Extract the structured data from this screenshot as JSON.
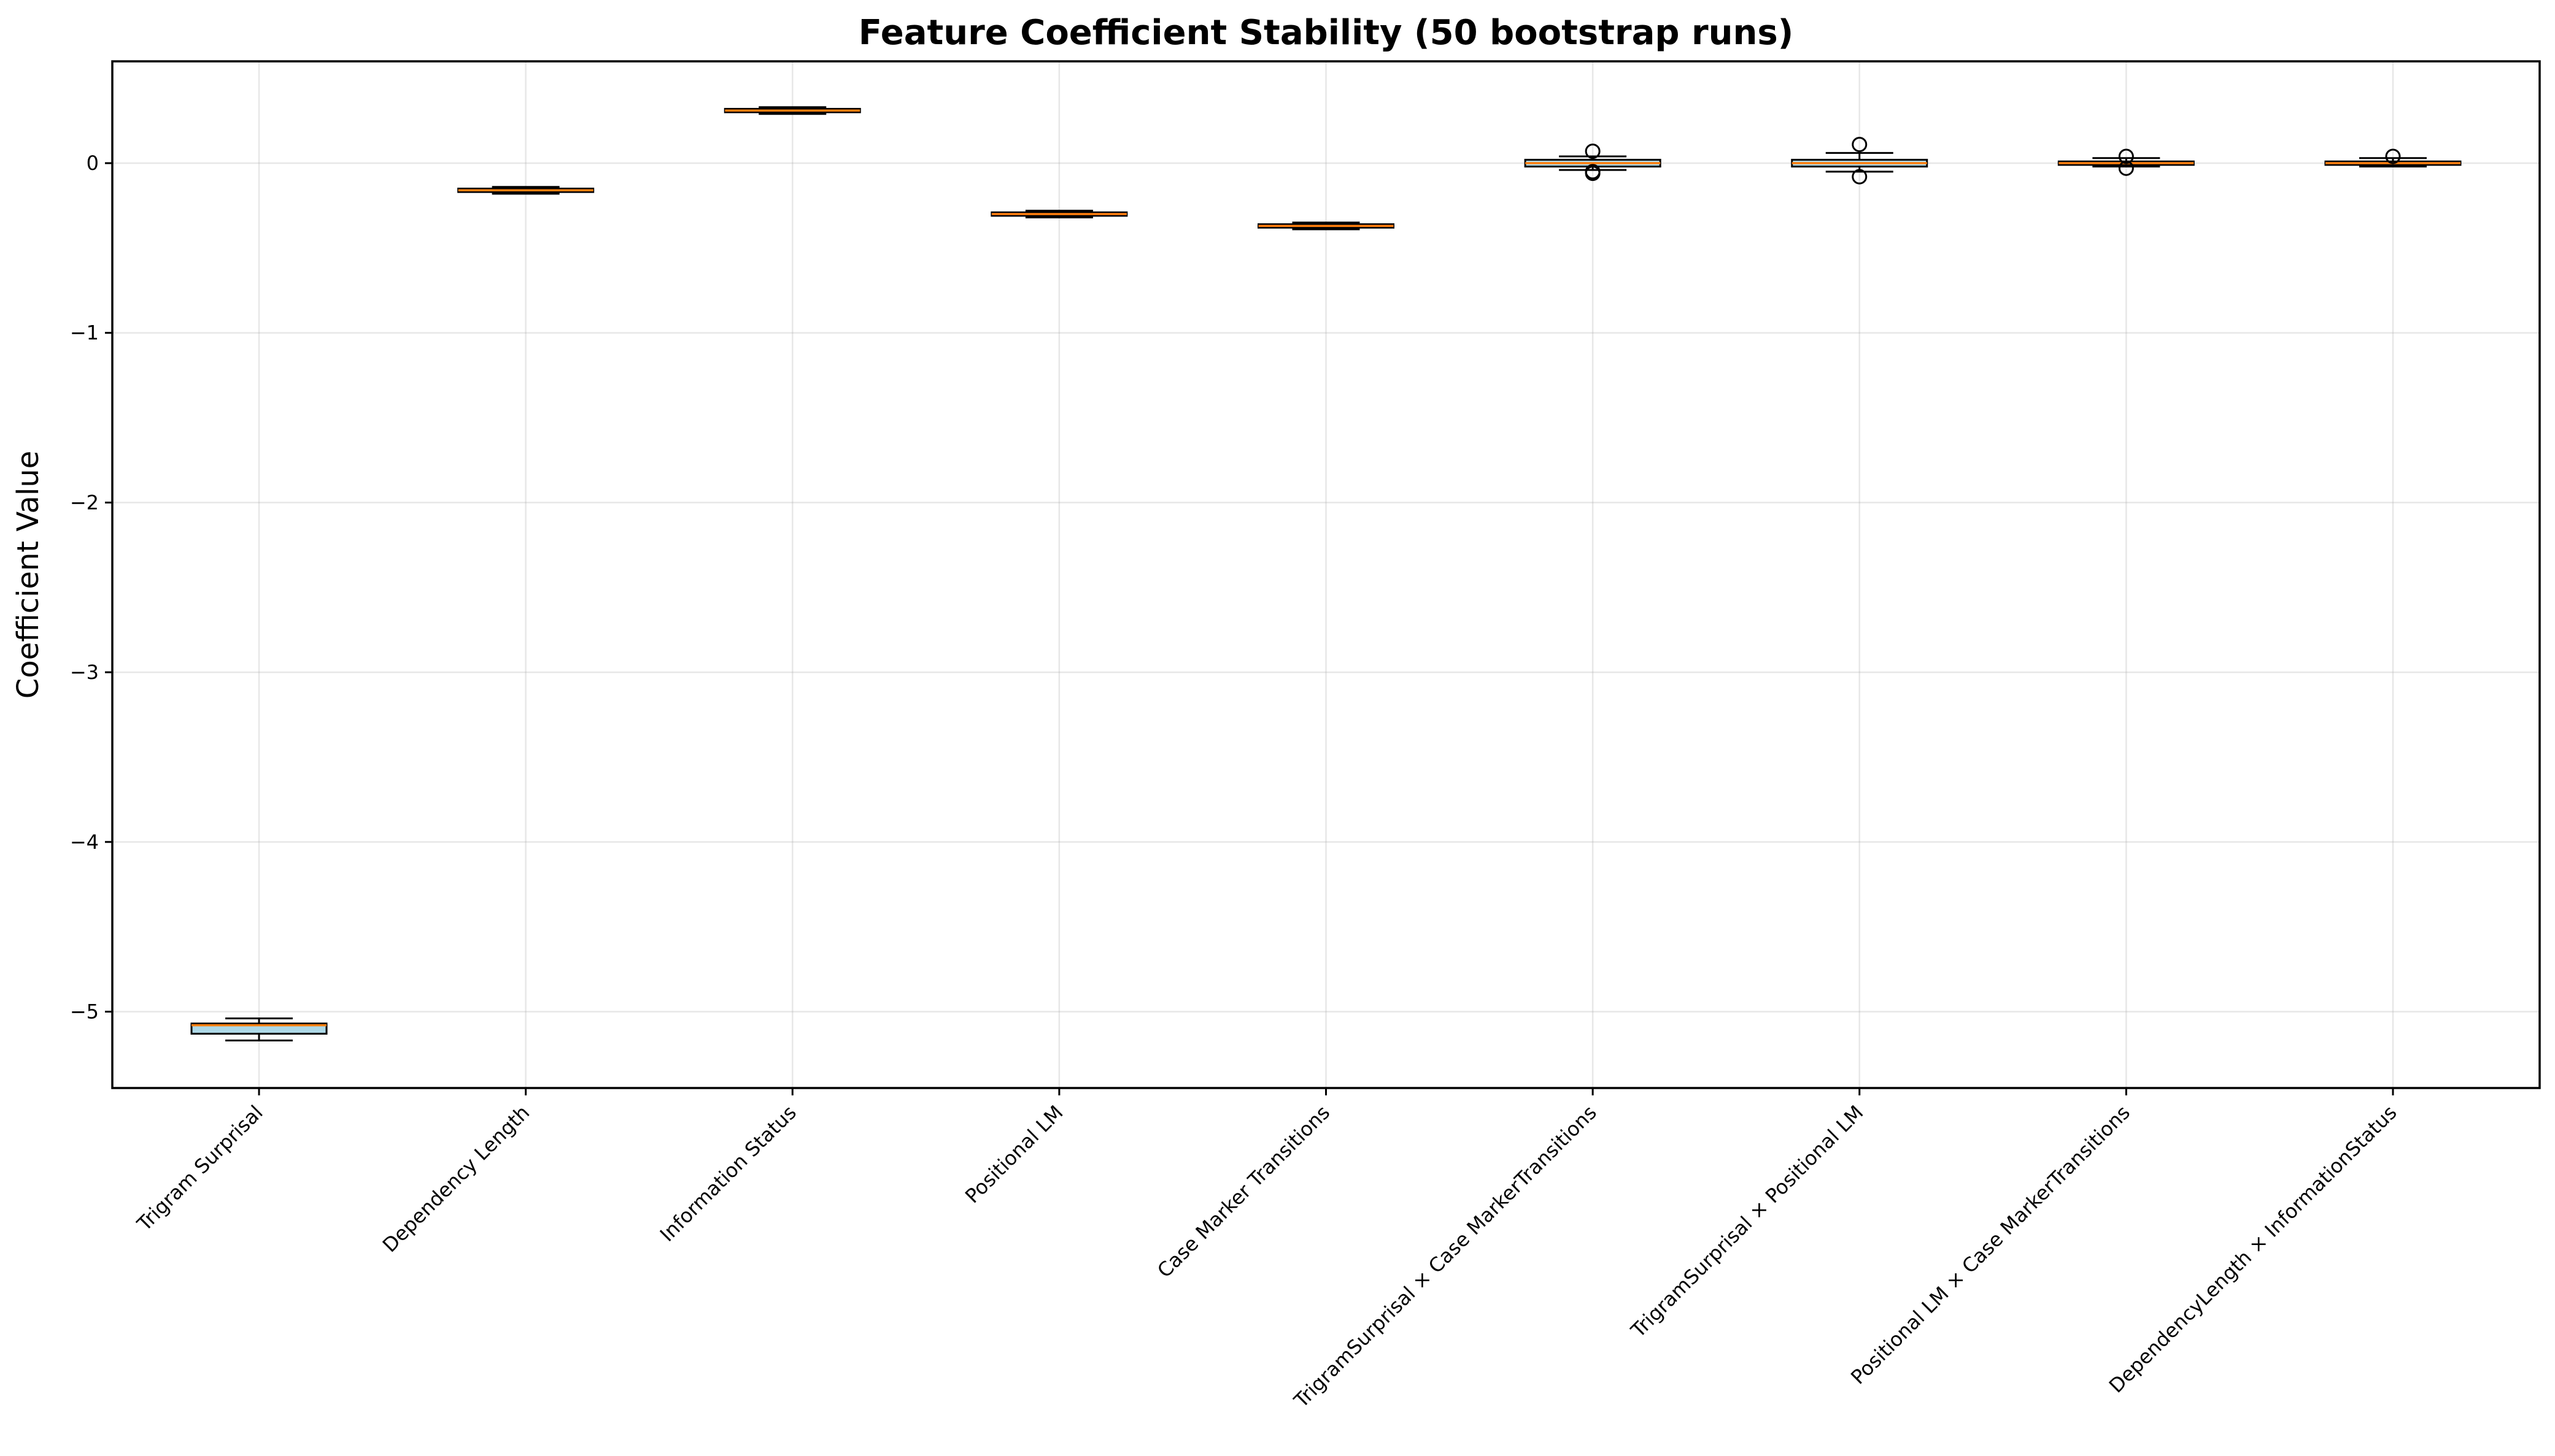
{
  "chart_data": {
    "type": "box",
    "title": "Feature Coefficient Stability (50 bootstrap runs)",
    "xlabel": "",
    "ylabel": "Coefficient Value",
    "ylim": [
      -5.45,
      0.6
    ],
    "yticks": [
      {
        "value": 0,
        "label": "0"
      },
      {
        "value": -1,
        "label": "−1"
      },
      {
        "value": -2,
        "label": "−2"
      },
      {
        "value": -3,
        "label": "−3"
      },
      {
        "value": -4,
        "label": "−4"
      },
      {
        "value": -5,
        "label": "−5"
      }
    ],
    "grid": true,
    "box_face_color": "#add8e6",
    "median_color": "#ff7f0e",
    "categories": [
      "Trigram Surprisal",
      "Dependency Length",
      "Information Status",
      "Positional LM",
      "Case Marker Transitions",
      "TrigramSurprisal × Case MarkerTransitions",
      "TrigramSurprisal × Positional LM",
      "Positional LM × Case MarkerTransitions",
      "DependencyLength × InformationStatus"
    ],
    "boxes": [
      {
        "whisker_low": -5.17,
        "q1": -5.13,
        "median": -5.08,
        "q3": -5.07,
        "whisker_high": -5.04,
        "outliers": []
      },
      {
        "whisker_low": -0.18,
        "q1": -0.17,
        "median": -0.16,
        "q3": -0.15,
        "whisker_high": -0.14,
        "outliers": []
      },
      {
        "whisker_low": 0.29,
        "q1": 0.3,
        "median": 0.31,
        "q3": 0.32,
        "whisker_high": 0.33,
        "outliers": []
      },
      {
        "whisker_low": -0.32,
        "q1": -0.31,
        "median": -0.3,
        "q3": -0.29,
        "whisker_high": -0.28,
        "outliers": []
      },
      {
        "whisker_low": -0.39,
        "q1": -0.38,
        "median": -0.37,
        "q3": -0.36,
        "whisker_high": -0.35,
        "outliers": []
      },
      {
        "whisker_low": -0.04,
        "q1": -0.02,
        "median": 0.0,
        "q3": 0.02,
        "whisker_high": 0.04,
        "outliers": [
          0.07,
          -0.05,
          -0.06
        ]
      },
      {
        "whisker_low": -0.05,
        "q1": -0.02,
        "median": 0.0,
        "q3": 0.02,
        "whisker_high": 0.06,
        "outliers": [
          0.11,
          -0.08
        ]
      },
      {
        "whisker_low": -0.02,
        "q1": -0.01,
        "median": 0.0,
        "q3": 0.01,
        "whisker_high": 0.03,
        "outliers": [
          0.04,
          -0.03
        ]
      },
      {
        "whisker_low": -0.02,
        "q1": -0.01,
        "median": 0.0,
        "q3": 0.01,
        "whisker_high": 0.03,
        "outliers": [
          0.04
        ]
      }
    ]
  }
}
